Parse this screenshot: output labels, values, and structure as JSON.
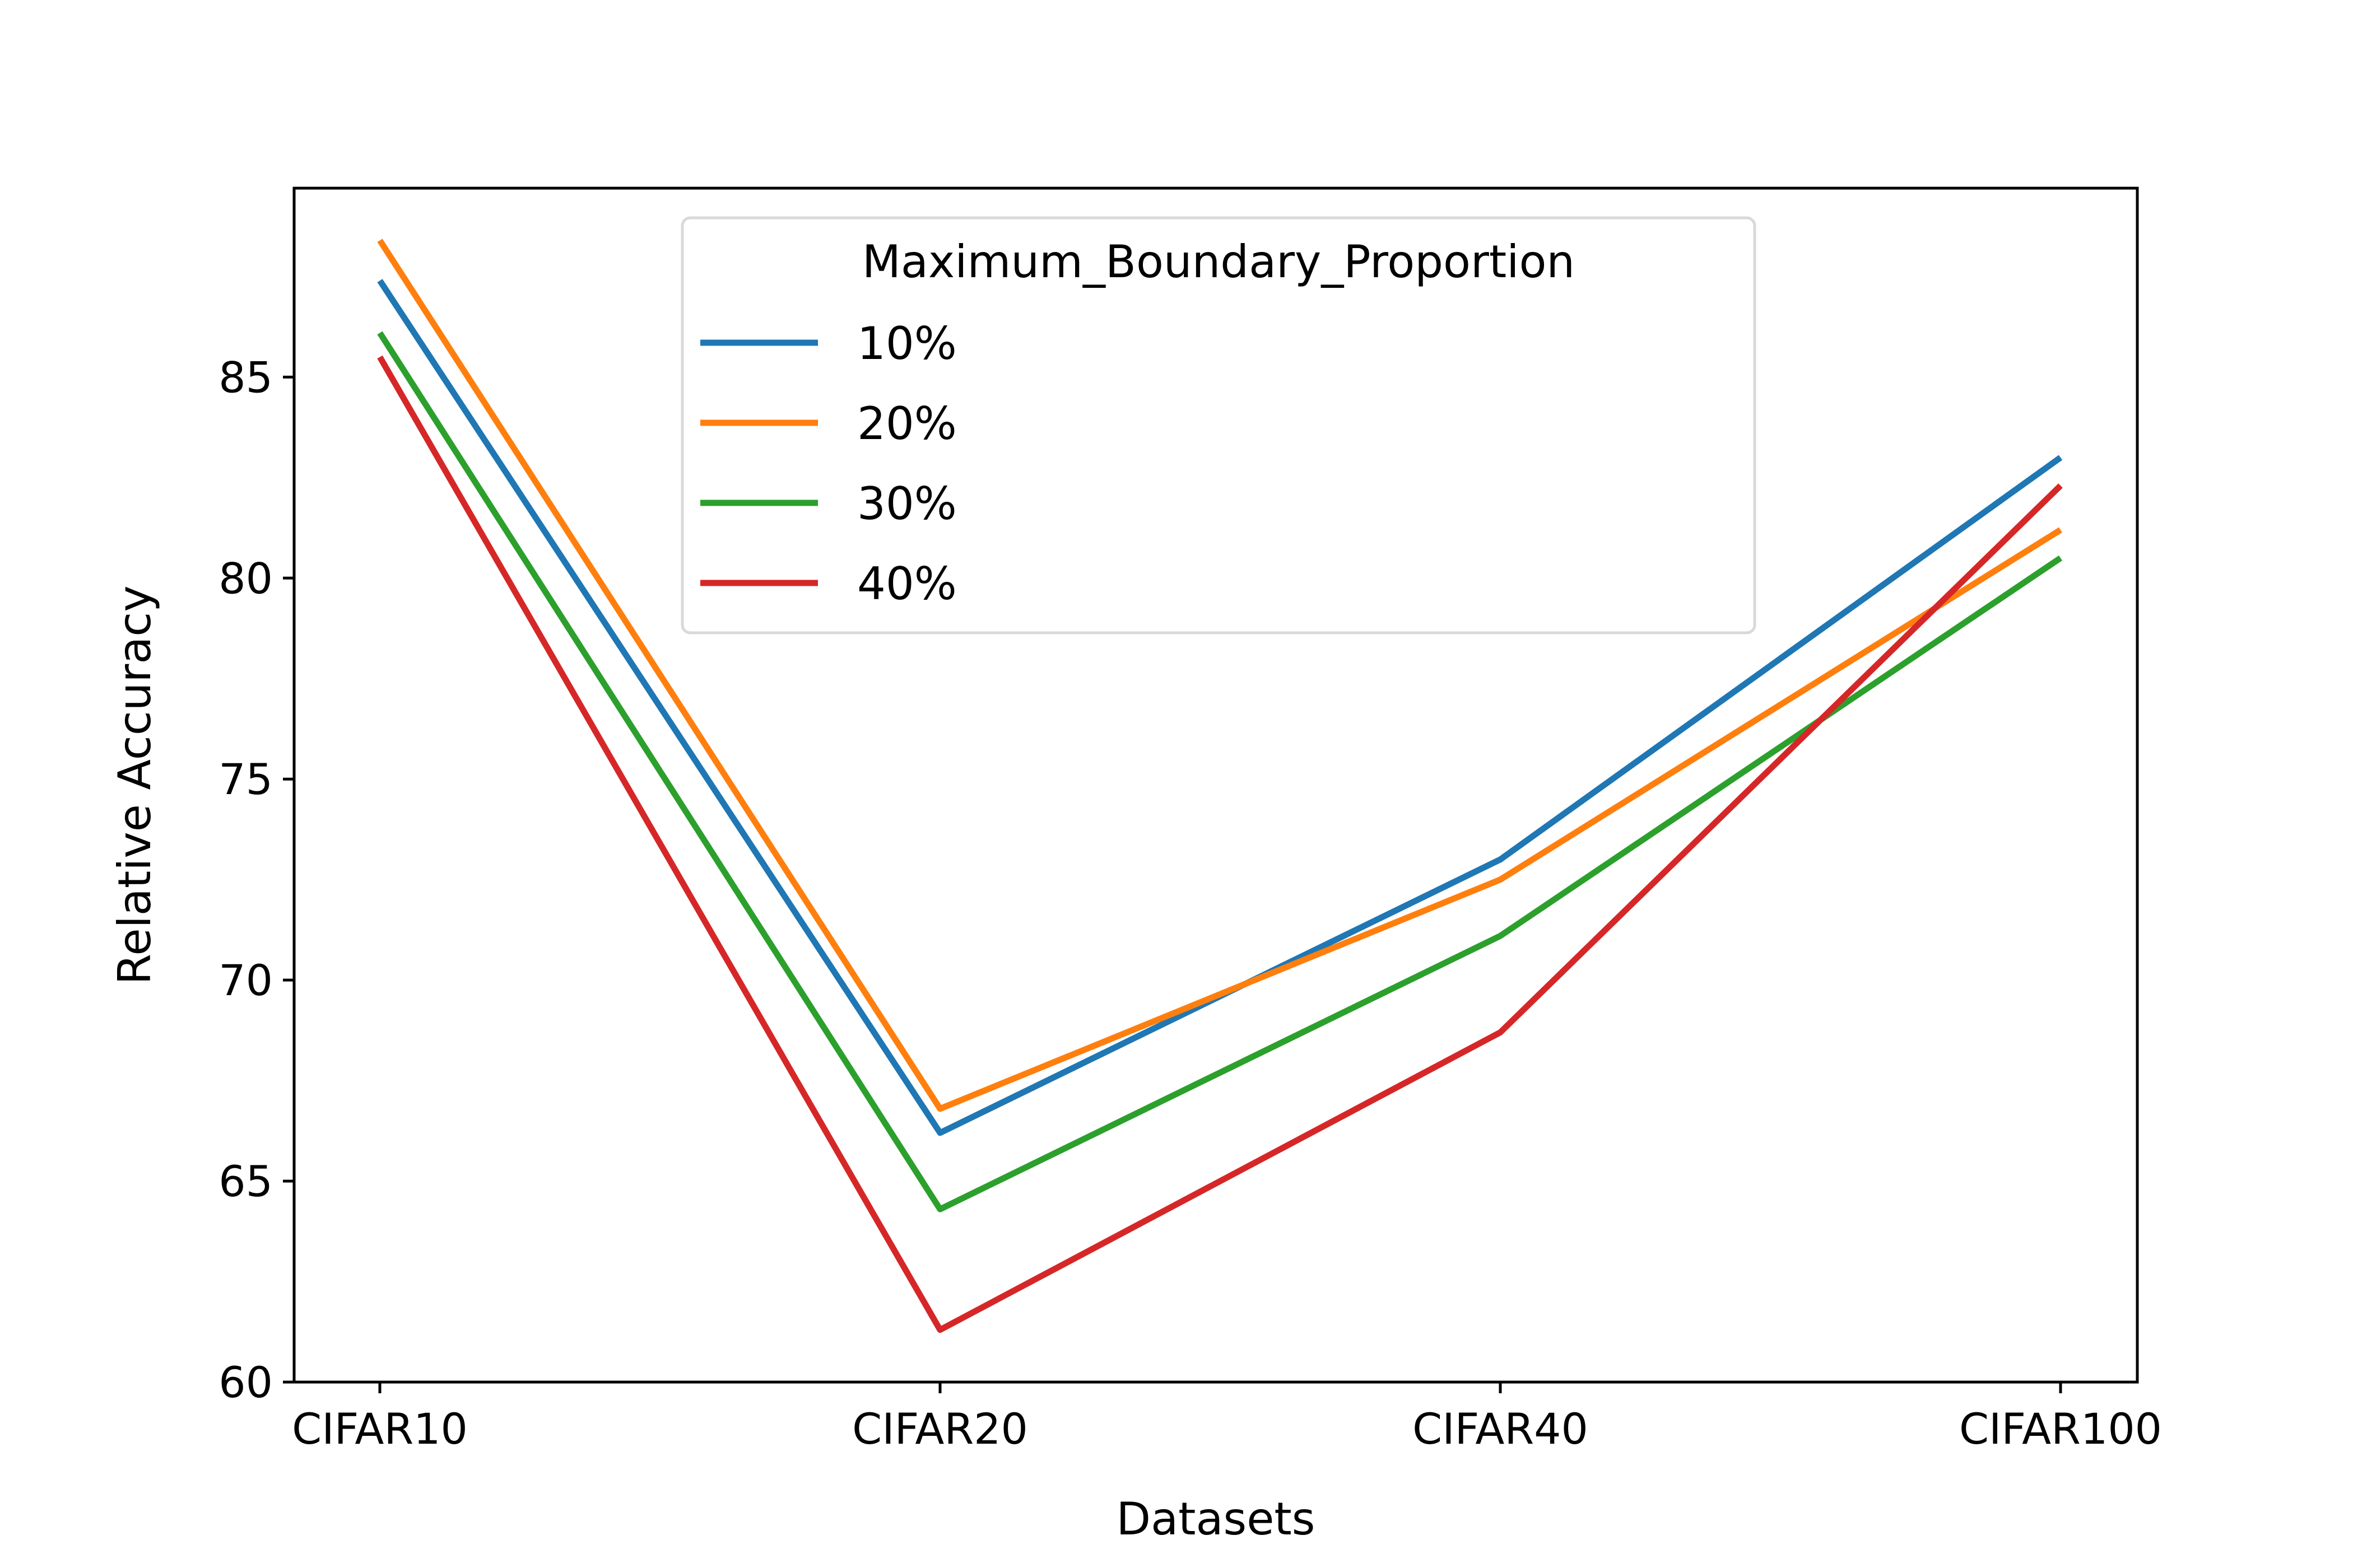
{
  "chart_data": {
    "type": "line",
    "title": "",
    "xlabel": "Datasets",
    "ylabel": "Relative Accuracy",
    "categories": [
      "CIFAR10",
      "CIFAR20",
      "CIFAR40",
      "CIFAR100"
    ],
    "ylim": [
      60,
      89.7
    ],
    "yticks": [
      60,
      65,
      70,
      75,
      80,
      85
    ],
    "grid": false,
    "legend": {
      "title": "Maximum_Boundary_Proportion",
      "placement": "upper center"
    },
    "series": [
      {
        "name": "10%",
        "color": "#1f77b4",
        "values": [
          87.4,
          66.2,
          73.0,
          83.0
        ]
      },
      {
        "name": "20%",
        "color": "#ff7f0e",
        "values": [
          88.4,
          66.8,
          72.5,
          81.2
        ]
      },
      {
        "name": "30%",
        "color": "#2ca02c",
        "values": [
          86.1,
          64.3,
          71.1,
          80.5
        ]
      },
      {
        "name": "40%",
        "color": "#d62728",
        "values": [
          85.5,
          61.3,
          68.7,
          82.3
        ]
      }
    ]
  }
}
